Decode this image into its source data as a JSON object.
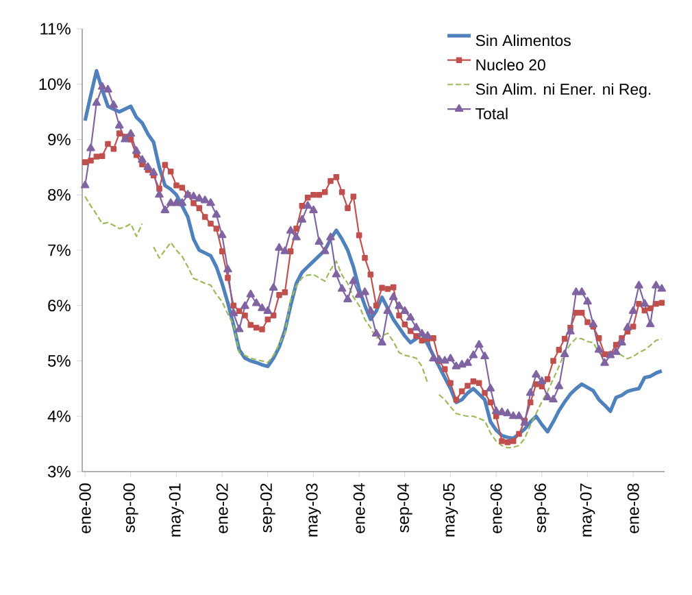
{
  "chart_data": {
    "type": "line",
    "categories": [
      "ene-00",
      null,
      null,
      null,
      null,
      null,
      null,
      null,
      "sep-00",
      null,
      null,
      null,
      null,
      null,
      null,
      null,
      "may-01",
      null,
      null,
      null,
      null,
      null,
      null,
      null,
      "ene-02",
      null,
      null,
      null,
      null,
      null,
      null,
      null,
      "sep-02",
      null,
      null,
      null,
      null,
      null,
      null,
      null,
      "may-03",
      null,
      null,
      null,
      null,
      null,
      null,
      null,
      "ene-04",
      null,
      null,
      null,
      null,
      null,
      null,
      null,
      "sep-04",
      null,
      null,
      null,
      null,
      null,
      null,
      null,
      "may-05",
      null,
      null,
      null,
      null,
      null,
      null,
      null,
      "ene-06",
      null,
      null,
      null,
      null,
      null,
      null,
      null,
      "sep-06",
      null,
      null,
      null,
      null,
      null,
      null,
      null,
      "may-07",
      null,
      null,
      null,
      null,
      null,
      null,
      null,
      "ene-08",
      null,
      null,
      null,
      null,
      null
    ],
    "series": [
      {
        "name": "Sin Alimentos",
        "color": "#4f81bd",
        "marker": "none",
        "line_style": "solid",
        "values": [
          9.34,
          9.8,
          10.24,
          9.9,
          9.6,
          9.55,
          9.5,
          9.55,
          9.6,
          9.4,
          9.3,
          9.1,
          8.95,
          8.5,
          8.17,
          8.1,
          8.0,
          7.8,
          7.6,
          7.2,
          7.0,
          6.95,
          6.9,
          6.7,
          6.4,
          6.05,
          5.65,
          5.2,
          5.05,
          5.0,
          4.97,
          4.93,
          4.9,
          5.05,
          5.25,
          5.55,
          6.0,
          6.4,
          6.6,
          6.7,
          6.8,
          6.9,
          7.0,
          7.2,
          7.36,
          7.2,
          7.0,
          6.7,
          6.3,
          6.0,
          5.75,
          5.9,
          6.15,
          5.95,
          5.75,
          5.6,
          5.45,
          5.33,
          5.4,
          5.5,
          5.3,
          5.1,
          4.9,
          4.7,
          4.5,
          4.25,
          4.3,
          4.42,
          4.5,
          4.4,
          4.3,
          3.9,
          3.75,
          3.65,
          3.62,
          3.6,
          3.68,
          3.77,
          3.9,
          4.0,
          3.85,
          3.72,
          3.9,
          4.1,
          4.26,
          4.4,
          4.5,
          4.58,
          4.52,
          4.46,
          4.3,
          4.2,
          4.09,
          4.34,
          4.38,
          4.45,
          4.48,
          4.5,
          4.7,
          4.72,
          4.78,
          4.82
        ]
      },
      {
        "name": "Nucleo 20",
        "color": "#c0504d",
        "marker": "square",
        "line_style": "solid",
        "values": [
          8.59,
          8.62,
          8.69,
          8.7,
          8.92,
          8.83,
          9.11,
          9.05,
          9.0,
          8.72,
          8.55,
          8.45,
          8.35,
          8.11,
          8.54,
          8.42,
          8.17,
          8.13,
          8.0,
          7.85,
          7.76,
          7.6,
          7.48,
          7.39,
          6.98,
          6.5,
          6.0,
          5.9,
          5.82,
          5.65,
          5.6,
          5.57,
          5.75,
          5.82,
          6.19,
          6.24,
          6.98,
          7.39,
          7.8,
          7.95,
          8.0,
          8.0,
          8.05,
          8.25,
          8.32,
          8.05,
          7.76,
          7.97,
          7.27,
          6.86,
          6.56,
          6.0,
          6.32,
          6.3,
          6.33,
          5.82,
          5.66,
          5.54,
          5.45,
          5.37,
          5.4,
          5.41,
          5.0,
          4.85,
          4.6,
          4.3,
          4.45,
          4.55,
          4.63,
          4.6,
          4.42,
          4.25,
          4.0,
          3.55,
          3.53,
          3.55,
          3.68,
          3.92,
          4.25,
          4.58,
          4.54,
          4.67,
          5.0,
          5.2,
          5.4,
          5.6,
          5.87,
          5.87,
          5.7,
          5.62,
          5.41,
          5.12,
          5.12,
          5.29,
          5.41,
          5.53,
          5.62,
          6.03,
          5.91,
          5.95,
          6.03,
          6.05
        ]
      },
      {
        "name": "Sin Alim. ni Ener. ni Reg.",
        "color": "#9bbb59",
        "marker": "none",
        "line_style": "dashed",
        "values": [
          7.97,
          7.8,
          7.65,
          7.48,
          7.5,
          7.45,
          7.39,
          7.42,
          7.48,
          7.25,
          7.48,
          null,
          7.06,
          6.86,
          7.0,
          7.14,
          7.0,
          6.89,
          6.7,
          6.49,
          6.45,
          6.4,
          6.37,
          6.2,
          6.07,
          5.85,
          5.65,
          5.15,
          5.1,
          5.05,
          5.02,
          5.0,
          4.97,
          5.1,
          5.3,
          5.5,
          6.1,
          6.35,
          6.5,
          6.55,
          6.56,
          6.5,
          6.44,
          6.65,
          6.8,
          6.55,
          6.4,
          6.15,
          6.0,
          5.75,
          5.6,
          5.41,
          5.45,
          5.5,
          5.35,
          5.15,
          5.1,
          5.08,
          5.05,
          4.9,
          4.6,
          null,
          4.39,
          4.3,
          4.17,
          4.05,
          4.02,
          4.0,
          4.0,
          3.96,
          3.92,
          3.7,
          3.55,
          3.47,
          3.43,
          3.44,
          3.47,
          3.6,
          3.84,
          4.05,
          4.26,
          4.45,
          4.67,
          4.9,
          5.15,
          5.3,
          5.41,
          5.4,
          5.35,
          5.33,
          5.15,
          5.08,
          5.1,
          5.16,
          5.1,
          5.04,
          5.08,
          5.15,
          5.2,
          5.28,
          5.37,
          5.4
        ]
      },
      {
        "name": "Total",
        "color": "#8064a2",
        "marker": "triangle",
        "line_style": "solid",
        "values": [
          8.17,
          8.84,
          9.66,
          9.95,
          9.9,
          9.62,
          9.25,
          9.0,
          9.1,
          8.79,
          8.63,
          8.5,
          8.4,
          8.0,
          7.72,
          7.85,
          7.85,
          7.85,
          8.0,
          7.97,
          7.93,
          7.9,
          7.85,
          7.64,
          7.27,
          6.65,
          5.86,
          5.57,
          5.99,
          6.2,
          6.04,
          5.95,
          5.9,
          6.32,
          7.04,
          6.98,
          7.35,
          7.23,
          7.55,
          7.8,
          7.72,
          7.15,
          6.98,
          7.23,
          6.56,
          6.3,
          6.11,
          6.44,
          6.19,
          6.24,
          5.9,
          5.49,
          5.33,
          5.9,
          6.15,
          5.99,
          5.9,
          5.78,
          5.6,
          5.49,
          5.45,
          5.04,
          5.02,
          5.0,
          5.04,
          4.9,
          4.93,
          4.96,
          5.1,
          5.29,
          5.08,
          4.5,
          4.09,
          4.07,
          4.05,
          4.0,
          4.0,
          3.88,
          4.42,
          4.75,
          4.63,
          4.34,
          4.3,
          4.54,
          5.12,
          5.53,
          6.24,
          6.24,
          6.07,
          5.66,
          5.2,
          4.96,
          5.1,
          5.16,
          5.33,
          5.6,
          5.9,
          6.36,
          6.03,
          5.66,
          6.36,
          6.3
        ]
      }
    ],
    "ylim": [
      3,
      11
    ],
    "yticks": [
      {
        "value": 3,
        "label": "3%"
      },
      {
        "value": 4,
        "label": "4%"
      },
      {
        "value": 5,
        "label": "5%"
      },
      {
        "value": 6,
        "label": "6%"
      },
      {
        "value": 7,
        "label": "7%"
      },
      {
        "value": 8,
        "label": "8%"
      },
      {
        "value": 9,
        "label": "9%"
      },
      {
        "value": 10,
        "label": "10%"
      },
      {
        "value": 11,
        "label": "11%"
      }
    ],
    "grid": false,
    "legend": "top right"
  }
}
